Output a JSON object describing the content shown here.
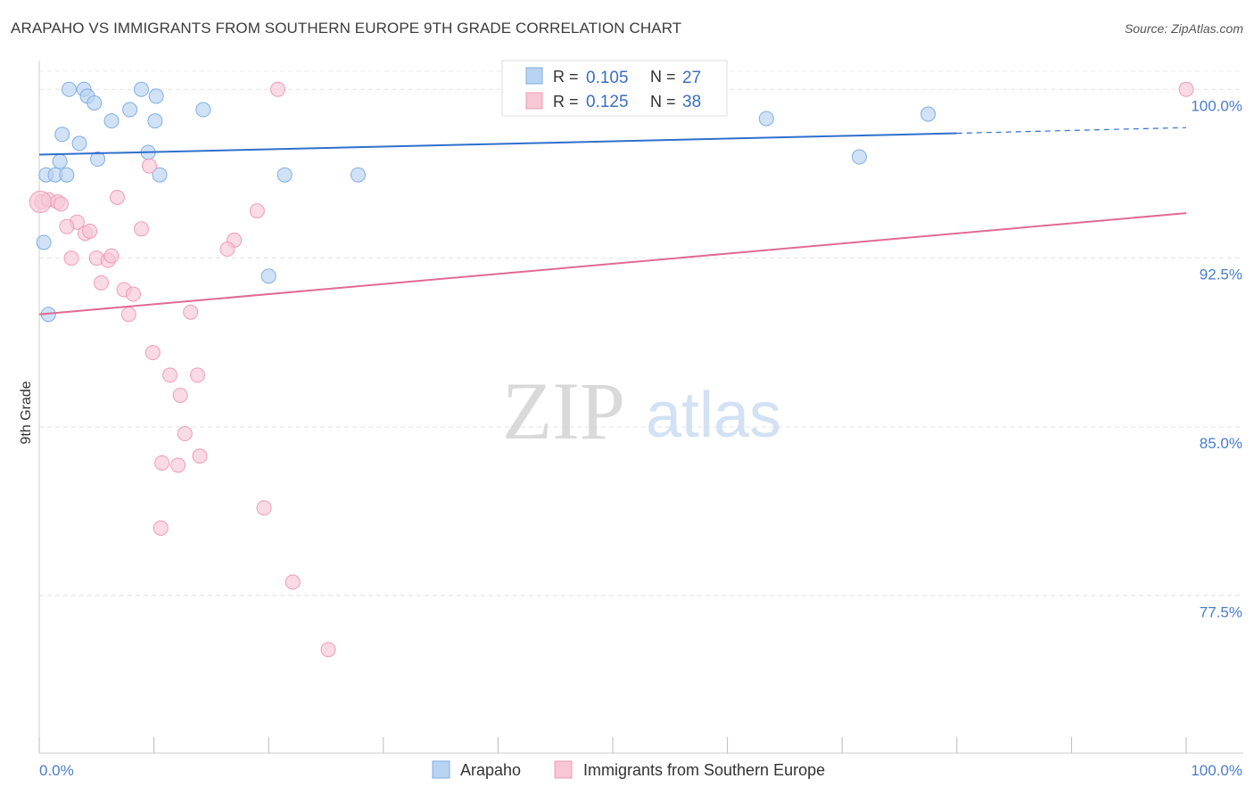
{
  "title": "ARAPAHO VS IMMIGRANTS FROM SOUTHERN EUROPE 9TH GRADE CORRELATION CHART",
  "source": "Source: ZipAtlas.com",
  "watermark": {
    "zip": "ZIP",
    "atlas": "atlas"
  },
  "colors": {
    "blue_fill": "#b9d3f2",
    "blue_stroke": "#7faee3",
    "blue_line": "#2f6fcc",
    "pink_fill": "#f8c6d5",
    "pink_stroke": "#ee9cb7",
    "pink_line": "#e06a95",
    "axis_label": "#4a7dc9",
    "grid": "#e3e3e3"
  },
  "legend": [
    {
      "r_label": "R =",
      "r_value": "0.105",
      "n_label": "N =",
      "n_value": "27"
    },
    {
      "r_label": "R =",
      "r_value": "0.125",
      "n_label": "N =",
      "n_value": "38"
    }
  ],
  "chart_data": {
    "type": "scatter",
    "title": "ARAPAHO VS IMMIGRANTS FROM SOUTHERN EUROPE 9TH GRADE CORRELATION CHART",
    "xlabel": "",
    "ylabel": "9th Grade",
    "xlim": [
      0,
      100
    ],
    "ylim": [
      70.5,
      101.2
    ],
    "x_tick_labels": [
      "0.0%",
      "100.0%"
    ],
    "y_ticks": [
      77.5,
      85.0,
      92.5,
      100.0
    ],
    "y_tick_labels": [
      "77.5%",
      "85.0%",
      "92.5%",
      "100.0%"
    ],
    "grid": true,
    "series": [
      {
        "name": "Arapaho",
        "color": "#7faee3",
        "points": [
          [
            2.6,
            100.0
          ],
          [
            3.9,
            100.0
          ],
          [
            8.9,
            100.0
          ],
          [
            4.2,
            99.7
          ],
          [
            10.2,
            99.7
          ],
          [
            4.8,
            99.4
          ],
          [
            7.9,
            99.1
          ],
          [
            14.3,
            99.1
          ],
          [
            6.3,
            98.6
          ],
          [
            10.1,
            98.6
          ],
          [
            63.4,
            98.7
          ],
          [
            77.5,
            98.9
          ],
          [
            2.0,
            98.0
          ],
          [
            3.5,
            97.6
          ],
          [
            9.5,
            97.2
          ],
          [
            1.8,
            96.8
          ],
          [
            5.1,
            96.9
          ],
          [
            71.5,
            97.0
          ],
          [
            0.6,
            96.2
          ],
          [
            1.4,
            96.2
          ],
          [
            2.4,
            96.2
          ],
          [
            10.5,
            96.2
          ],
          [
            21.4,
            96.2
          ],
          [
            27.8,
            96.2
          ],
          [
            0.4,
            93.2
          ],
          [
            20.0,
            91.7
          ],
          [
            0.8,
            90.0
          ]
        ],
        "trend": {
          "x_start": 0,
          "y_start": 97.1,
          "x_solid_end": 80,
          "y_solid_end": 98.05,
          "x_end": 100,
          "y_end": 98.3
        }
      },
      {
        "name": "Immigrants from Southern Europe",
        "color": "#ee9cb7",
        "points": [
          [
            20.8,
            100.0
          ],
          [
            100.0,
            100.0
          ],
          [
            9.6,
            96.6
          ],
          [
            0.2,
            95.0
          ],
          [
            0.8,
            95.1
          ],
          [
            1.6,
            95.0
          ],
          [
            1.9,
            94.9
          ],
          [
            6.8,
            95.2
          ],
          [
            19.0,
            94.6
          ],
          [
            3.3,
            94.1
          ],
          [
            2.4,
            93.9
          ],
          [
            4.0,
            93.6
          ],
          [
            4.4,
            93.7
          ],
          [
            8.9,
            93.8
          ],
          [
            17.0,
            93.3
          ],
          [
            16.4,
            92.9
          ],
          [
            2.8,
            92.5
          ],
          [
            5.0,
            92.5
          ],
          [
            6.0,
            92.4
          ],
          [
            6.3,
            92.6
          ],
          [
            5.4,
            91.4
          ],
          [
            7.4,
            91.1
          ],
          [
            8.2,
            90.9
          ],
          [
            7.8,
            90.0
          ],
          [
            13.2,
            90.1
          ],
          [
            9.9,
            88.3
          ],
          [
            11.4,
            87.3
          ],
          [
            13.8,
            87.3
          ],
          [
            12.3,
            86.4
          ],
          [
            12.7,
            84.7
          ],
          [
            14.0,
            83.7
          ],
          [
            10.7,
            83.4
          ],
          [
            12.1,
            83.3
          ],
          [
            19.6,
            81.4
          ],
          [
            10.6,
            80.5
          ],
          [
            22.1,
            78.1
          ],
          [
            25.2,
            75.1
          ],
          [
            0.1,
            95.0
          ]
        ],
        "trend": {
          "x_start": 0,
          "y_start": 90.0,
          "x_end": 100,
          "y_end": 94.5
        }
      }
    ]
  },
  "bottom_legend": [
    {
      "label": "Arapaho"
    },
    {
      "label": "Immigrants from Southern Europe"
    }
  ]
}
